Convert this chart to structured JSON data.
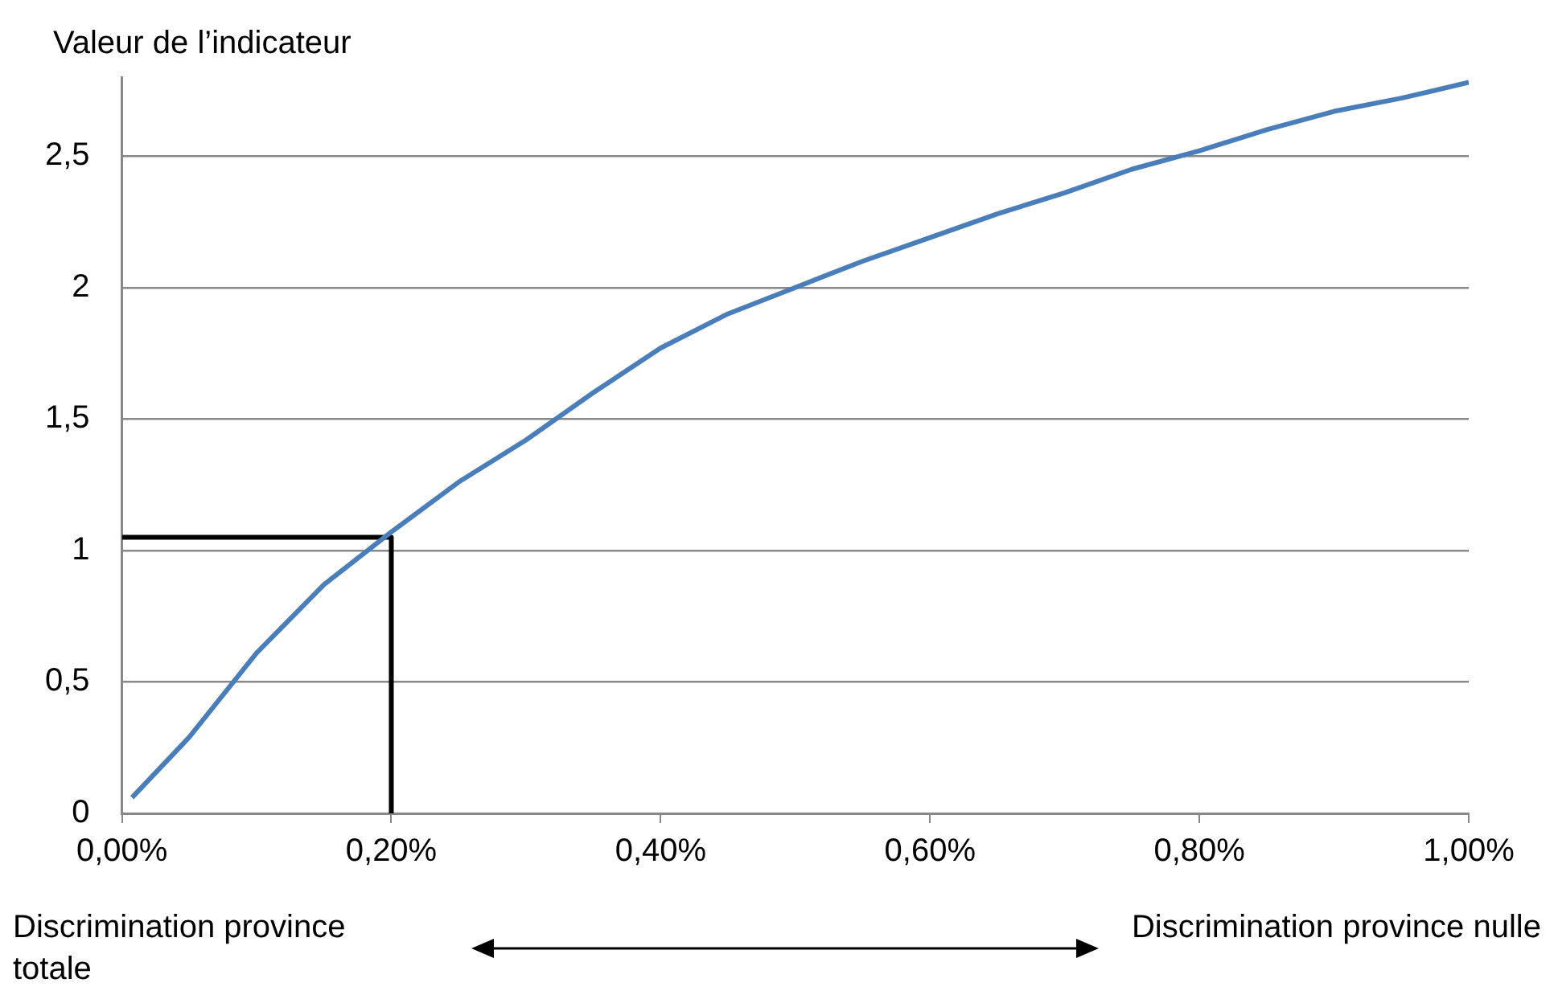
{
  "chart_data": {
    "type": "line",
    "ylabel": "Valeur de l’indicateur",
    "xlim": [
      0,
      1
    ],
    "xticks": [
      {
        "value": 0,
        "label": "0,00%"
      },
      {
        "value": 0.2,
        "label": "0,20%"
      },
      {
        "value": 0.4,
        "label": "0,40%"
      },
      {
        "value": 0.6,
        "label": "0,60%"
      },
      {
        "value": 0.8,
        "label": "0,80%"
      },
      {
        "value": 1,
        "label": "1,00%"
      }
    ],
    "ylim": [
      0,
      2.8
    ],
    "yticks": [
      0,
      {
        "value": 0.5,
        "label": "0,5"
      },
      1,
      {
        "value": 1.5,
        "label": "1,5"
      },
      2,
      {
        "value": 2.5,
        "label": "2,5"
      }
    ],
    "grid": "y",
    "legend": false,
    "marker": "none",
    "line_style": "solid",
    "series": [
      {
        "color": "#4a7ebb",
        "x": [
          0.0075,
          0.05,
          0.1,
          0.15,
          0.2,
          0.25,
          0.3,
          0.35,
          0.4,
          0.45,
          0.5,
          0.55,
          0.6,
          0.65,
          0.7,
          0.75,
          0.8,
          0.85,
          0.9,
          0.95,
          1.0
        ],
        "values": [
          0.06,
          0.29,
          0.61,
          0.87,
          1.07,
          1.26,
          1.42,
          1.6,
          1.77,
          1.9,
          2.0,
          2.1,
          2.19,
          2.28,
          2.36,
          2.45,
          2.52,
          2.6,
          2.67,
          2.72,
          2.78
        ]
      },
      {
        "color": "#000000",
        "x": [
          0,
          0.2,
          0.2
        ],
        "values": [
          1.05,
          1.05,
          0
        ]
      }
    ],
    "annotations": [
      "Discrimination province totale",
      "Discrimination province nulle"
    ]
  }
}
